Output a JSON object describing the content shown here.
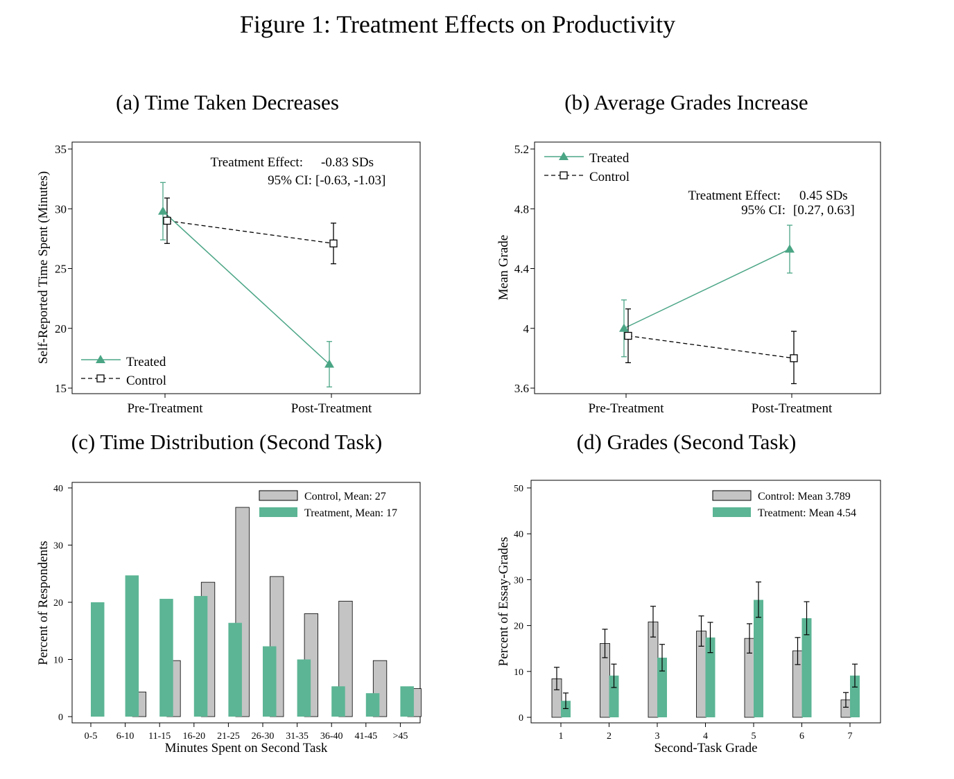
{
  "figure_title": "Figure 1: Treatment Effects on Productivity",
  "colors": {
    "treated": "#4aa585",
    "treated_fill": "#5cb595",
    "control_fill": "#c4c4c4",
    "control_line": "#000000"
  },
  "chart_data": [
    {
      "type": "line",
      "title": "(a) Time Taken Decreases",
      "xlabel": "",
      "ylabel": "Self-Reported Time Spent (Minutes)",
      "categories": [
        "Pre-Treatment",
        "Post-Treatment"
      ],
      "yticks": [
        "15",
        "20",
        "25",
        "30",
        "35"
      ],
      "ylim": [
        15,
        35
      ],
      "legend_position": "bottom-left",
      "annotation": {
        "line1_label": "Treatment Effect:",
        "line1_value": "-0.83 SDs",
        "line2_label": "95% CI:",
        "line2_value": "[-0.63, -1.03]"
      },
      "series": [
        {
          "name": "Treated",
          "marker": "triangle",
          "values": [
            29.8,
            17.0
          ],
          "lower": [
            27.4,
            15.1
          ],
          "upper": [
            32.2,
            18.9
          ]
        },
        {
          "name": "Control",
          "marker": "square",
          "values": [
            29.0,
            27.1
          ],
          "lower": [
            27.1,
            25.4
          ],
          "upper": [
            30.9,
            28.8
          ]
        }
      ]
    },
    {
      "type": "line",
      "title": "(b) Average Grades Increase",
      "xlabel": "",
      "ylabel": "Mean Grade",
      "categories": [
        "Pre-Treatment",
        "Post-Treatment"
      ],
      "yticks": [
        "3.6",
        "4",
        "4.4",
        "4.8",
        "5.2"
      ],
      "ylim": [
        3.6,
        5.2
      ],
      "legend_position": "top-left",
      "annotation": {
        "line1_label": "Treatment Effect:",
        "line1_value": "0.45 SDs",
        "line2_label": "95% CI:",
        "line2_value": "[0.27, 0.63]"
      },
      "series": [
        {
          "name": "Treated",
          "marker": "triangle",
          "values": [
            4.0,
            4.53
          ],
          "lower": [
            3.81,
            4.37
          ],
          "upper": [
            4.19,
            4.69
          ]
        },
        {
          "name": "Control",
          "marker": "square",
          "values": [
            3.95,
            3.8
          ],
          "lower": [
            3.77,
            3.63
          ],
          "upper": [
            4.13,
            3.98
          ]
        }
      ]
    },
    {
      "type": "bar",
      "title": "(c) Time Distribution (Second Task)",
      "xlabel": "Minutes Spent on Second Task",
      "ylabel": "Percent of Respondents",
      "categories": [
        "0-5",
        "6-10",
        "11-15",
        "16-20",
        "21-25",
        "26-30",
        "31-35",
        "36-40",
        "41-45",
        ">45"
      ],
      "yticks": [
        "0",
        "10",
        "20",
        "30",
        "40"
      ],
      "ylim": [
        0,
        40
      ],
      "legend_position": "top-right",
      "series": [
        {
          "name": "Control, Mean: 27",
          "values": [
            0,
            4.3,
            9.8,
            23.5,
            36.6,
            24.5,
            18.0,
            20.2,
            9.8,
            4.9
          ]
        },
        {
          "name": "Treatment, Mean: 17",
          "values": [
            20.0,
            24.7,
            20.6,
            21.1,
            16.4,
            12.3,
            10.0,
            5.3,
            4.1,
            5.3
          ]
        }
      ]
    },
    {
      "type": "bar",
      "title": "(d) Grades (Second Task)",
      "xlabel": "Second-Task Grade",
      "ylabel": "Percent of Essay-Grades",
      "categories": [
        "1",
        "2",
        "3",
        "4",
        "5",
        "6",
        "7"
      ],
      "yticks": [
        "0",
        "10",
        "20",
        "30",
        "40",
        "50"
      ],
      "ylim": [
        0,
        50
      ],
      "legend_position": "top-right",
      "series": [
        {
          "name": "Control: Mean 3.789",
          "values": [
            8.4,
            16.1,
            20.8,
            18.8,
            17.2,
            14.5,
            3.8
          ],
          "lower": [
            6.0,
            13.0,
            17.5,
            15.5,
            14.0,
            11.5,
            2.2
          ],
          "upper": [
            10.9,
            19.2,
            24.2,
            22.1,
            20.4,
            17.4,
            5.4
          ]
        },
        {
          "name": "Treatment: Mean 4.54",
          "values": [
            3.6,
            9.1,
            13.0,
            17.4,
            25.6,
            21.6,
            9.1
          ],
          "lower": [
            1.9,
            6.5,
            10.1,
            14.1,
            21.8,
            18.0,
            6.6
          ],
          "upper": [
            5.3,
            11.6,
            15.9,
            20.7,
            29.5,
            25.2,
            11.6
          ]
        }
      ]
    }
  ]
}
